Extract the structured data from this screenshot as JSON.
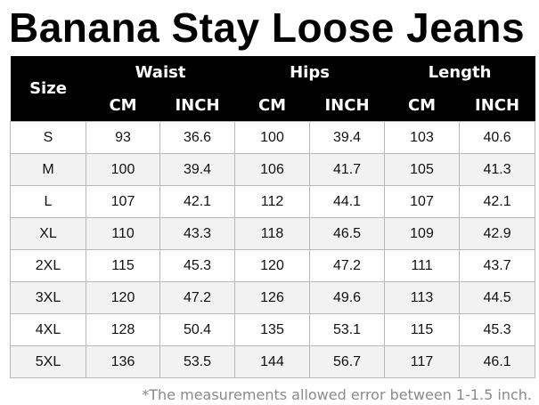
{
  "title": "Banana Stay Loose Jeans",
  "table": {
    "size_header": "Size",
    "groups": [
      "Waist",
      "Hips",
      "Length"
    ],
    "units": [
      "CM",
      "INCH",
      "CM",
      "INCH",
      "CM",
      "INCH"
    ],
    "rows": [
      [
        "S",
        "93",
        "36.6",
        "100",
        "39.4",
        "103",
        "40.6"
      ],
      [
        "M",
        "100",
        "39.4",
        "106",
        "41.7",
        "105",
        "41.3"
      ],
      [
        "L",
        "107",
        "42.1",
        "112",
        "44.1",
        "107",
        "42.1"
      ],
      [
        "XL",
        "110",
        "43.3",
        "118",
        "46.5",
        "109",
        "42.9"
      ],
      [
        "2XL",
        "115",
        "45.3",
        "120",
        "47.2",
        "111",
        "43.7"
      ],
      [
        "3XL",
        "120",
        "47.2",
        "126",
        "49.6",
        "113",
        "44.5"
      ],
      [
        "4XL",
        "128",
        "50.4",
        "135",
        "53.1",
        "115",
        "45.3"
      ],
      [
        "5XL",
        "136",
        "53.5",
        "144",
        "56.7",
        "117",
        "46.1"
      ]
    ]
  },
  "note": "*The measurements allowed error between 1-1.5 inch.",
  "colors": {
    "header_bg": "#000000",
    "header_text": "#ffffff",
    "row_alt": "#f2f2f2",
    "note_text": "#8a8a8a"
  }
}
